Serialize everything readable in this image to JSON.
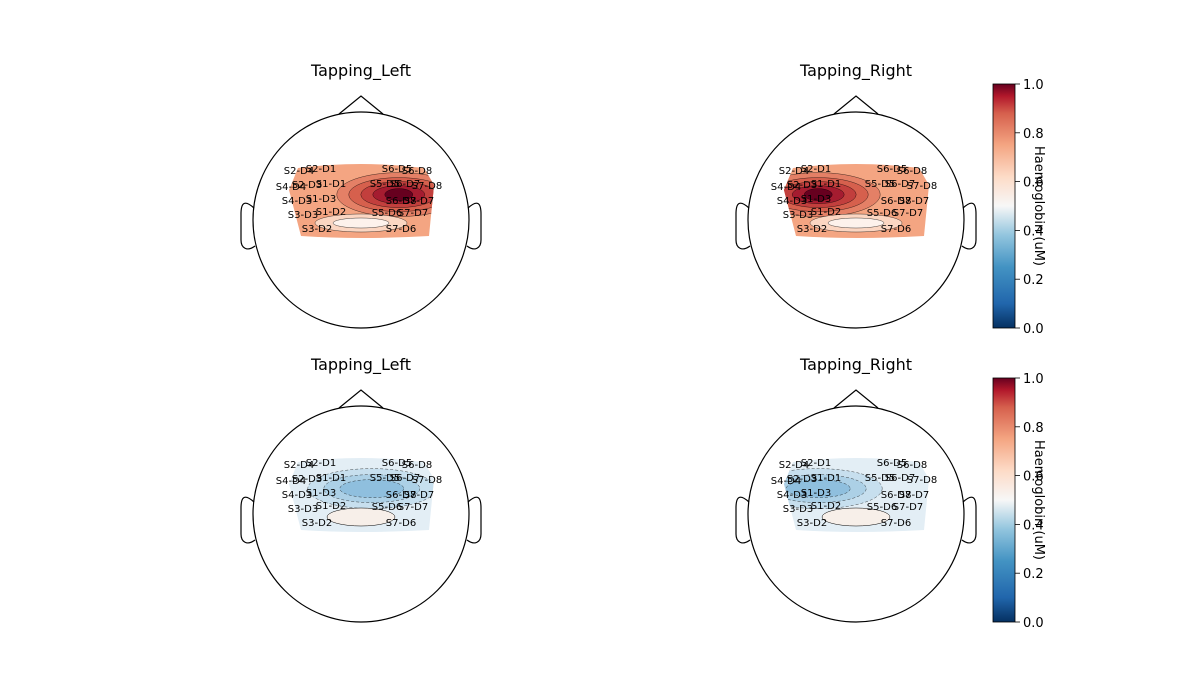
{
  "chart_data": {
    "type": "heatmap",
    "subtype": "topographic-map",
    "colormap": "RdBu_r",
    "grid": false,
    "panels": [
      {
        "title": "Tapping_Left",
        "row": 0,
        "col": 0,
        "condition": "high",
        "hot_center": [
          0.35,
          -0.05
        ],
        "cool_center": [
          0.0,
          -0.25
        ]
      },
      {
        "title": "Tapping_Right",
        "row": 0,
        "col": 1,
        "condition": "high",
        "hot_center": [
          -0.35,
          -0.05
        ],
        "cool_center": [
          0.0,
          -0.25
        ]
      },
      {
        "title": "Tapping_Left",
        "row": 1,
        "col": 0,
        "condition": "low",
        "cool_center": [
          0.1,
          -0.05
        ],
        "warm_center": [
          0.0,
          -0.25
        ]
      },
      {
        "title": "Tapping_Right",
        "row": 1,
        "col": 1,
        "condition": "low",
        "cool_center": [
          -0.35,
          -0.05
        ],
        "warm_center": [
          0.0,
          -0.25
        ]
      }
    ],
    "channels": [
      "S1-D1",
      "S1-D2",
      "S1-D3",
      "S2-D1",
      "S2-D3",
      "S2-D4",
      "S3-D1",
      "S3-D2",
      "S3-D3",
      "S4-D3",
      "S4-D4",
      "S5-D5",
      "S5-D6",
      "S5-D7",
      "S6-D5",
      "S6-D7",
      "S6-D8",
      "S7-D6",
      "S7-D7",
      "S8-D7",
      "S8-D8"
    ],
    "colorbars": [
      {
        "label": "Haemoglobin (uM)",
        "ticks": [
          0.0,
          0.2,
          0.4,
          0.6,
          0.8,
          1.0
        ],
        "tick_labels": [
          "0.0",
          "0.2",
          "0.4",
          "0.6",
          "0.8",
          "1.0"
        ],
        "ylim": [
          0,
          1
        ]
      },
      {
        "label": "Haemoglobin (uM)",
        "ticks": [
          0.0,
          0.2,
          0.4,
          0.6,
          0.8,
          1.0
        ],
        "tick_labels": [
          "0.0",
          "0.2",
          "0.4",
          "0.6",
          "0.8",
          "1.0"
        ],
        "ylim": [
          0,
          1
        ]
      }
    ]
  },
  "colors": {
    "deep_blue": "#053061",
    "blue": "#2166ac",
    "light_blue": "#92c5de",
    "white": "#f7f7f7",
    "salmon": "#f4a582",
    "red": "#d6604d",
    "deep_red": "#67001f"
  }
}
